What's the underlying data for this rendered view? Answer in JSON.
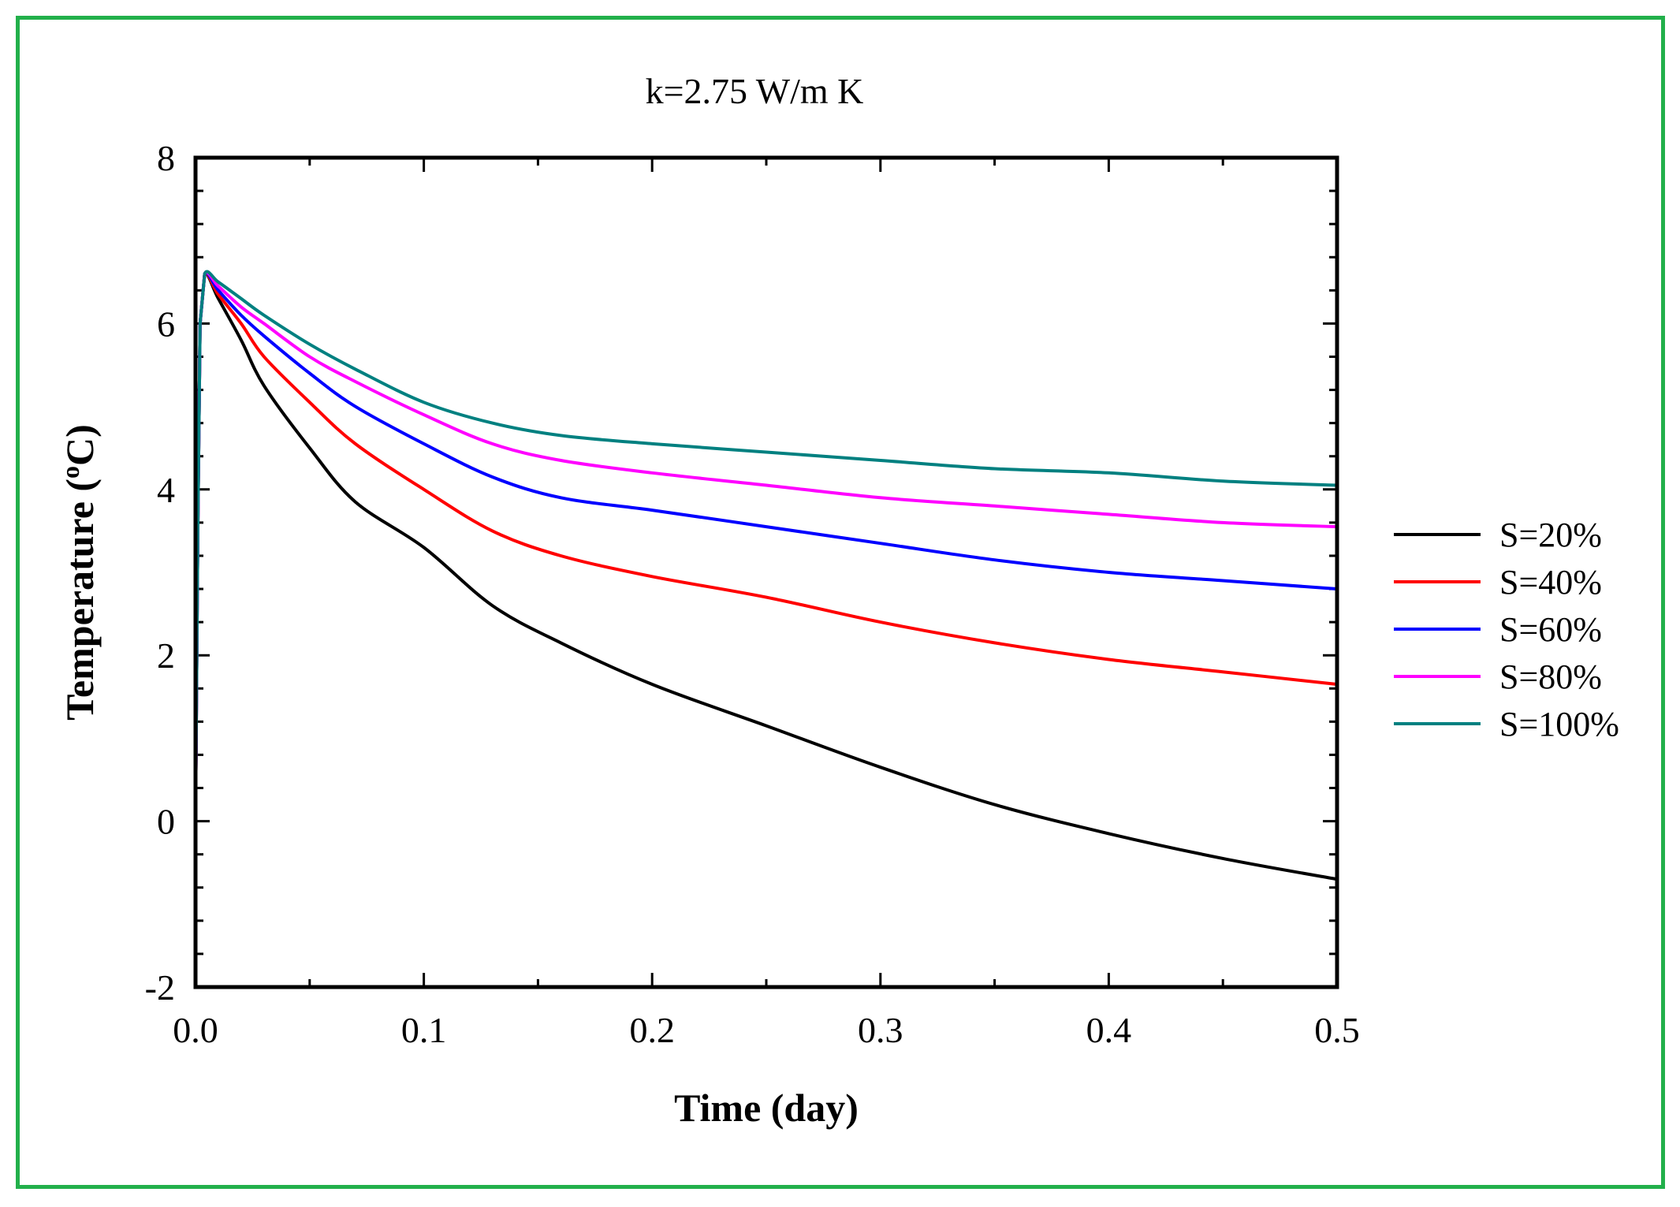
{
  "chart_data": {
    "type": "line",
    "title": "k=2.75 W/m K",
    "xlabel": "Time (day)",
    "ylabel": "Temperature (",
    "ylabel_sup": "o",
    "ylabel_unit": "C)",
    "xlim": [
      0,
      0.5
    ],
    "ylim": [
      -2,
      8
    ],
    "xticks": [
      "0.0",
      "0.1",
      "0.2",
      "0.3",
      "0.4",
      "0.5"
    ],
    "xtick_values": [
      0,
      0.1,
      0.2,
      0.3,
      0.4,
      0.5
    ],
    "yticks": [
      "-2",
      "0",
      "2",
      "4",
      "6",
      "8"
    ],
    "ytick_values": [
      -2,
      0,
      2,
      4,
      6,
      8
    ],
    "legend_position": "right",
    "grid": false,
    "series": [
      {
        "name": "S=20%",
        "color": "#000000",
        "x": [
          0,
          0.001,
          0.002,
          0.004,
          0.01,
          0.02,
          0.03,
          0.05,
          0.07,
          0.1,
          0.13,
          0.16,
          0.2,
          0.25,
          0.3,
          0.35,
          0.4,
          0.45,
          0.5
        ],
        "y": [
          0,
          3.5,
          6.0,
          6.6,
          6.3,
          5.8,
          5.25,
          4.5,
          3.85,
          3.3,
          2.6,
          2.15,
          1.65,
          1.15,
          0.65,
          0.2,
          -0.15,
          -0.45,
          -0.7
        ]
      },
      {
        "name": "S=40%",
        "color": "#ff0000",
        "x": [
          0,
          0.001,
          0.002,
          0.004,
          0.01,
          0.02,
          0.03,
          0.05,
          0.07,
          0.1,
          0.13,
          0.16,
          0.2,
          0.25,
          0.3,
          0.35,
          0.4,
          0.45,
          0.5
        ],
        "y": [
          0,
          3.5,
          6.0,
          6.6,
          6.35,
          6.0,
          5.6,
          5.05,
          4.55,
          4.0,
          3.5,
          3.2,
          2.95,
          2.7,
          2.4,
          2.15,
          1.95,
          1.8,
          1.65
        ]
      },
      {
        "name": "S=60%",
        "color": "#0000ff",
        "x": [
          0,
          0.001,
          0.002,
          0.004,
          0.01,
          0.02,
          0.03,
          0.05,
          0.07,
          0.1,
          0.13,
          0.16,
          0.2,
          0.25,
          0.3,
          0.35,
          0.4,
          0.45,
          0.5
        ],
        "y": [
          0,
          3.5,
          6.0,
          6.6,
          6.4,
          6.1,
          5.85,
          5.4,
          5.0,
          4.55,
          4.15,
          3.9,
          3.75,
          3.55,
          3.35,
          3.15,
          3.0,
          2.9,
          2.8
        ]
      },
      {
        "name": "S=80%",
        "color": "#ff00ff",
        "x": [
          0,
          0.001,
          0.002,
          0.004,
          0.01,
          0.02,
          0.03,
          0.05,
          0.07,
          0.1,
          0.13,
          0.16,
          0.2,
          0.25,
          0.3,
          0.35,
          0.4,
          0.45,
          0.5
        ],
        "y": [
          0,
          3.5,
          6.0,
          6.6,
          6.45,
          6.2,
          6.0,
          5.6,
          5.3,
          4.9,
          4.55,
          4.35,
          4.2,
          4.05,
          3.9,
          3.8,
          3.7,
          3.6,
          3.55
        ]
      },
      {
        "name": "S=100%",
        "color": "#008080",
        "x": [
          0,
          0.001,
          0.002,
          0.004,
          0.01,
          0.02,
          0.03,
          0.05,
          0.07,
          0.1,
          0.13,
          0.16,
          0.2,
          0.25,
          0.3,
          0.35,
          0.4,
          0.45,
          0.5
        ],
        "y": [
          0,
          3.5,
          6.0,
          6.6,
          6.5,
          6.3,
          6.1,
          5.75,
          5.45,
          5.05,
          4.8,
          4.65,
          4.55,
          4.45,
          4.35,
          4.25,
          4.2,
          4.1,
          4.05
        ]
      }
    ]
  }
}
